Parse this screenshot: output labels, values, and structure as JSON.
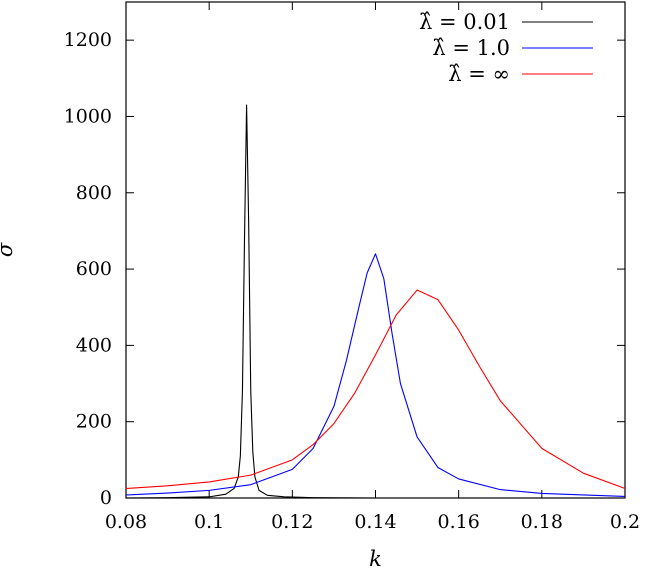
{
  "chart_data": {
    "type": "line",
    "title": "",
    "xlabel": "k",
    "ylabel": "σ",
    "xlim": [
      0.08,
      0.2
    ],
    "ylim": [
      0,
      1300
    ],
    "x_ticks": [
      "0.08",
      "0.1",
      "0.12",
      "0.14",
      "0.16",
      "0.18",
      "0.2"
    ],
    "y_ticks": [
      "0",
      "200",
      "400",
      "600",
      "800",
      "1000",
      "1200"
    ],
    "grid": false,
    "legend_position": "top-right",
    "series": [
      {
        "name": "λ̂ = 0.01",
        "color": "#000000",
        "x": [
          0.08,
          0.09,
          0.1,
          0.104,
          0.106,
          0.107,
          0.1075,
          0.108,
          0.1085,
          0.109,
          0.1095,
          0.11,
          0.1105,
          0.111,
          0.112,
          0.114,
          0.118,
          0.125,
          0.14,
          0.2
        ],
        "y": [
          0,
          1,
          3,
          10,
          25,
          55,
          110,
          280,
          680,
          1030,
          720,
          280,
          120,
          55,
          20,
          7,
          3,
          1,
          0,
          0
        ]
      },
      {
        "name": "λ̂ = 1.0",
        "color": "#0000ff",
        "x": [
          0.08,
          0.09,
          0.1,
          0.11,
          0.12,
          0.125,
          0.13,
          0.133,
          0.136,
          0.138,
          0.14,
          0.142,
          0.144,
          0.146,
          0.15,
          0.155,
          0.16,
          0.17,
          0.18,
          0.2
        ],
        "y": [
          8,
          13,
          20,
          35,
          75,
          130,
          240,
          360,
          500,
          590,
          640,
          575,
          430,
          300,
          160,
          80,
          50,
          22,
          12,
          4
        ]
      },
      {
        "name": "λ̂ = ∞",
        "color": "#ff0000",
        "x": [
          0.08,
          0.09,
          0.1,
          0.11,
          0.12,
          0.125,
          0.13,
          0.135,
          0.14,
          0.145,
          0.15,
          0.155,
          0.16,
          0.165,
          0.17,
          0.18,
          0.19,
          0.2
        ],
        "y": [
          25,
          32,
          42,
          60,
          100,
          140,
          195,
          275,
          375,
          480,
          545,
          520,
          440,
          345,
          255,
          130,
          65,
          25
        ]
      }
    ]
  }
}
